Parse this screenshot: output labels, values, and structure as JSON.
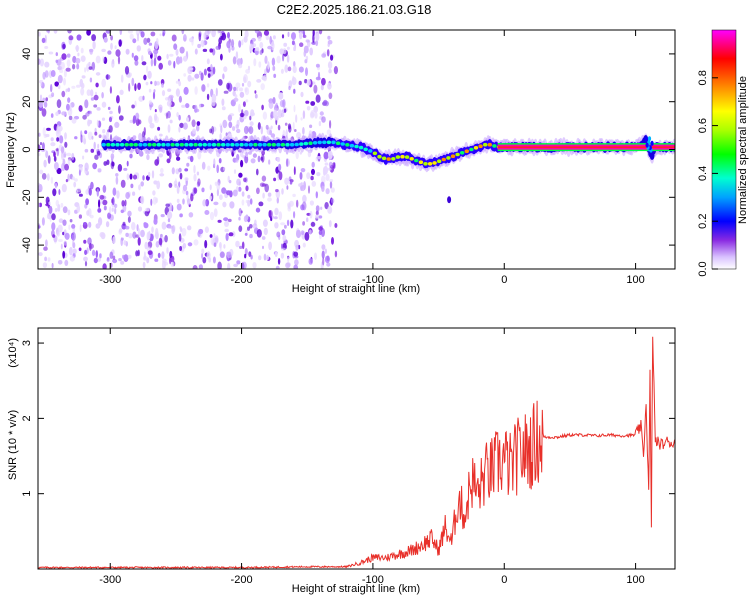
{
  "figure": {
    "title": "C2E2.2025.186.21.03.G18"
  },
  "colors": {
    "snr_line": "#e8302a",
    "center_line": "#ff2a00",
    "noise": "#8a2be2",
    "colormap": [
      "#ffffff",
      "#c7a2ff",
      "#7b00ff",
      "#0000ff",
      "#00a2ff",
      "#00ffd0",
      "#00ff00",
      "#c8ff00",
      "#ffff00",
      "#ff8c00",
      "#ff0000",
      "#ff00ff"
    ]
  },
  "chart_data": [
    {
      "type": "heatmap",
      "title": "C2E2.2025.186.21.03.G18",
      "xlabel": "Height of straight line (km)",
      "ylabel": "Frequency (Hz)",
      "xlim": [
        -355,
        130
      ],
      "ylim": [
        -50,
        50
      ],
      "x_ticks": [
        -300,
        -200,
        -100,
        0,
        100
      ],
      "y_ticks": [
        -40,
        -20,
        0,
        20,
        40
      ],
      "colorbar": {
        "label": "Normalized spectral amplitude",
        "range": [
          0,
          1
        ],
        "ticks": [
          0.0,
          0.2,
          0.4,
          0.6,
          0.8
        ]
      },
      "ridge": {
        "x": [
          -305,
          -280,
          -250,
          -220,
          -190,
          -160,
          -140,
          -130,
          -120,
          -110,
          -100,
          -95,
          -90,
          -85,
          -80,
          -75,
          -70,
          -65,
          -60,
          -55,
          -50,
          -45,
          -40,
          -35,
          -30,
          -25,
          -20,
          -15,
          -10,
          -5,
          0,
          10,
          20,
          40,
          60,
          80,
          100,
          105,
          108,
          110,
          112,
          115,
          125,
          130
        ],
        "y": [
          2,
          2,
          2,
          2,
          2,
          2,
          3,
          3,
          2,
          1,
          -1,
          -3,
          -4,
          -4,
          -3,
          -3,
          -4,
          -5,
          -6,
          -6,
          -5,
          -4,
          -3,
          -2,
          -1,
          0,
          1,
          2,
          2,
          1,
          1,
          1,
          1,
          1,
          1,
          1,
          1,
          2,
          4,
          0,
          -3,
          1,
          1,
          1
        ]
      },
      "outlier": {
        "x": -42,
        "y": -21
      }
    },
    {
      "type": "line",
      "xlabel": "Height of straight line (km)",
      "ylabel": "SNR (10 * v/v)",
      "y_multiplier": "(x10⁴)",
      "xlim": [
        -355,
        130
      ],
      "ylim": [
        0,
        3.2
      ],
      "x_ticks": [
        -300,
        -200,
        -100,
        0,
        100
      ],
      "y_ticks": [
        1,
        2,
        3
      ],
      "series": [
        {
          "x": [
            -355,
            -300,
            -250,
            -200,
            -150,
            -120,
            -110,
            -100,
            -90,
            -80,
            -70,
            -60,
            -55,
            -50,
            -45,
            -40,
            -35,
            -30,
            -25,
            -20,
            -15,
            -10,
            -5,
            0,
            5,
            10,
            15,
            20,
            25,
            30,
            40,
            50,
            60,
            70,
            80,
            90,
            100,
            104,
            106,
            108,
            110,
            111,
            112,
            113,
            115,
            120,
            125,
            130
          ],
          "y": [
            0.02,
            0.02,
            0.02,
            0.02,
            0.03,
            0.03,
            0.08,
            0.15,
            0.15,
            0.2,
            0.25,
            0.35,
            0.4,
            0.25,
            0.55,
            0.35,
            0.95,
            0.7,
            1.2,
            1.0,
            1.25,
            1.3,
            1.4,
            1.45,
            1.35,
            1.5,
            1.55,
            1.6,
            1.7,
            1.75,
            1.75,
            1.78,
            1.78,
            1.77,
            1.78,
            1.77,
            1.78,
            1.9,
            1.5,
            2.2,
            1.0,
            2.6,
            0.5,
            3.15,
            1.7,
            1.65,
            1.7,
            1.65
          ]
        }
      ]
    }
  ]
}
